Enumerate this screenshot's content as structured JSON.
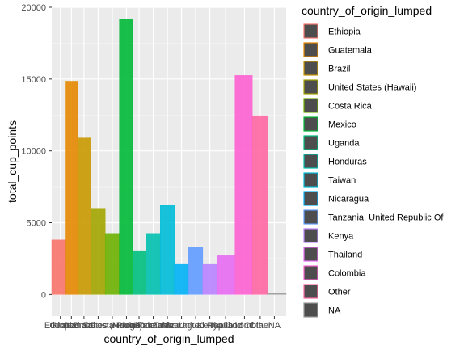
{
  "chart_data": {
    "type": "bar",
    "xlabel": "country_of_origin_lumped",
    "ylabel": "total_cup_points",
    "ylim": [
      -1500,
      20000
    ],
    "yticks": [
      0,
      5000,
      10000,
      15000,
      20000
    ],
    "grid": true,
    "legend_title": "country_of_origin_lumped",
    "legend_position": "right",
    "categories": [
      "Ethiopia",
      "Guatemala",
      "Brazil",
      "United States (Hawaii)",
      "Costa Rica",
      "Mexico",
      "Uganda",
      "Honduras",
      "Taiwan",
      "Nicaragua",
      "Tanzania, United Republic Of",
      "Kenya",
      "Thailand",
      "Colombia",
      "Other",
      "NA"
    ],
    "tick_labels": [
      "Ethiopia",
      "Guatemala",
      "Brazil",
      "United States (Hawaii)",
      "Costa Rica",
      "Mexico",
      "Uganda",
      "Honduras",
      "Taiwan",
      "Nicaragua",
      "Tanzania, United Republic Of",
      "Kenya",
      "Thailand",
      "Colombia",
      "Other",
      "NA"
    ],
    "values": [
      3800,
      14850,
      10900,
      6000,
      4250,
      19150,
      3050,
      4250,
      6200,
      2150,
      3300,
      2150,
      2700,
      15250,
      12450,
      100
    ],
    "tick_positions": [
      1,
      1.7,
      2.5,
      3.4,
      4.3,
      5.2,
      6,
      6.9,
      7.8,
      8.7,
      9.6,
      10.5,
      11.5,
      12.7,
      13.7,
      14.6
    ],
    "x_range": [
      0.45,
      15.35
    ],
    "colors": [
      "#F8766D",
      "#E58700",
      "#C99800",
      "#A3A500",
      "#6BB100",
      "#00BA38",
      "#00BF7D",
      "#00C0AF",
      "#00BCD8",
      "#00B0F6",
      "#619CFF",
      "#B983FF",
      "#E76BF3",
      "#FD61D1",
      "#FF67A4",
      "#999999"
    ]
  }
}
